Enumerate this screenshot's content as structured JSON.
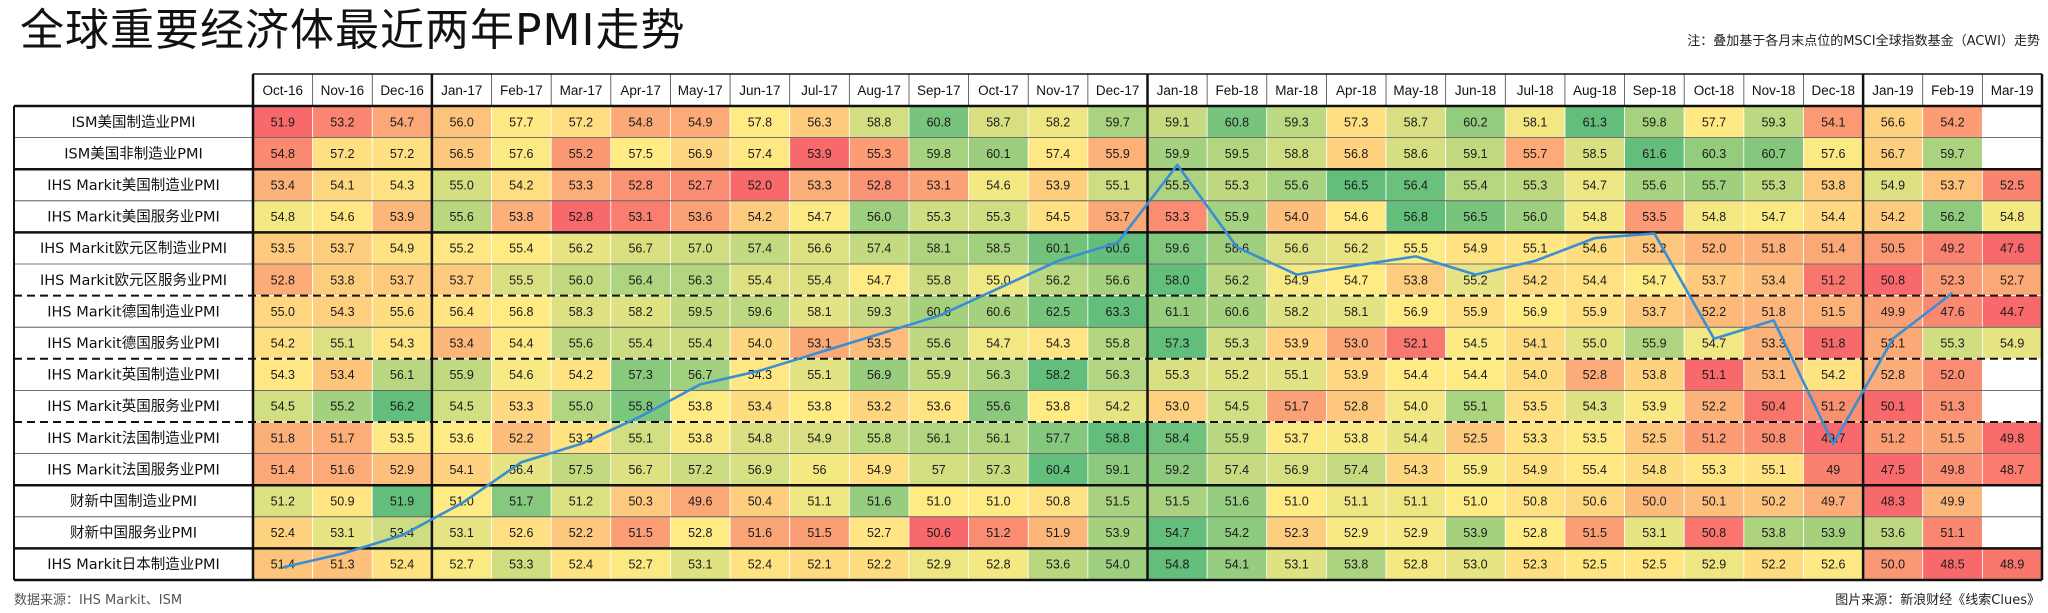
{
  "header": {
    "title": "全球重要经济体最近两年PMI走势",
    "note": "注：叠加基于各月末点位的MSCI全球指数基金（ACWI）走势"
  },
  "footer": {
    "source": "数据来源：IHS Markit、ISM",
    "image_source": "图片来源：新浪财经《线索Clues》"
  },
  "chart_data": {
    "type": "heatmap",
    "title": "全球重要经济体最近两年PMI走势",
    "columns": [
      "Oct-16",
      "Nov-16",
      "Dec-16",
      "Jan-17",
      "Feb-17",
      "Mar-17",
      "Apr-17",
      "May-17",
      "Jun-17",
      "Jul-17",
      "Aug-17",
      "Sep-17",
      "Oct-17",
      "Nov-17",
      "Dec-17",
      "Jan-18",
      "Feb-18",
      "Mar-18",
      "Apr-18",
      "May-18",
      "Jun-18",
      "Jul-18",
      "Aug-18",
      "Sep-18",
      "Oct-18",
      "Nov-18",
      "Dec-18",
      "Jan-19",
      "Feb-19",
      "Mar-19"
    ],
    "rows": [
      {
        "label": "ISM美国制造业PMI",
        "values": [
          "51.9",
          "53.2",
          "54.7",
          "56.0",
          "57.7",
          "57.2",
          "54.8",
          "54.9",
          "57.8",
          "56.3",
          "58.8",
          "60.8",
          "58.7",
          "58.2",
          "59.7",
          "59.1",
          "60.8",
          "59.3",
          "57.3",
          "58.7",
          "60.2",
          "58.1",
          "61.3",
          "59.8",
          "57.7",
          "59.3",
          "54.1",
          "56.6",
          "54.2",
          ""
        ]
      },
      {
        "label": "ISM美国非制造业PMI",
        "values": [
          "54.8",
          "57.2",
          "57.2",
          "56.5",
          "57.6",
          "55.2",
          "57.5",
          "56.9",
          "57.4",
          "53.9",
          "55.3",
          "59.8",
          "60.1",
          "57.4",
          "55.9",
          "59.9",
          "59.5",
          "58.8",
          "56.8",
          "58.6",
          "59.1",
          "55.7",
          "58.5",
          "61.6",
          "60.3",
          "60.7",
          "57.6",
          "56.7",
          "59.7",
          ""
        ]
      },
      {
        "label": "IHS Markit美国制造业PMI",
        "values": [
          "53.4",
          "54.1",
          "54.3",
          "55.0",
          "54.2",
          "53.3",
          "52.8",
          "52.7",
          "52.0",
          "53.3",
          "52.8",
          "53.1",
          "54.6",
          "53.9",
          "55.1",
          "55.5",
          "55.3",
          "55.6",
          "56.5",
          "56.4",
          "55.4",
          "55.3",
          "54.7",
          "55.6",
          "55.7",
          "55.3",
          "53.8",
          "54.9",
          "53.7",
          "52.5"
        ]
      },
      {
        "label": "IHS Markit美国服务业PMI",
        "values": [
          "54.8",
          "54.6",
          "53.9",
          "55.6",
          "53.8",
          "52.8",
          "53.1",
          "53.6",
          "54.2",
          "54.7",
          "56.0",
          "55.3",
          "55.3",
          "54.5",
          "53.7",
          "53.3",
          "55.9",
          "54.0",
          "54.6",
          "56.8",
          "56.5",
          "56.0",
          "54.8",
          "53.5",
          "54.8",
          "54.7",
          "54.4",
          "54.2",
          "56.2",
          "54.8"
        ]
      },
      {
        "label": "IHS Markit欧元区制造业PMI",
        "values": [
          "53.5",
          "53.7",
          "54.9",
          "55.2",
          "55.4",
          "56.2",
          "56.7",
          "57.0",
          "57.4",
          "56.6",
          "57.4",
          "58.1",
          "58.5",
          "60.1",
          "60.6",
          "59.6",
          "58.6",
          "56.6",
          "56.2",
          "55.5",
          "54.9",
          "55.1",
          "54.6",
          "53.2",
          "52.0",
          "51.8",
          "51.4",
          "50.5",
          "49.2",
          "47.6"
        ]
      },
      {
        "label": "IHS Markit欧元区服务业PMI",
        "values": [
          "52.8",
          "53.8",
          "53.7",
          "53.7",
          "55.5",
          "56.0",
          "56.4",
          "56.3",
          "55.4",
          "55.4",
          "54.7",
          "55.8",
          "55.0",
          "56.2",
          "56.6",
          "58.0",
          "56.2",
          "54.9",
          "54.7",
          "53.8",
          "55.2",
          "54.2",
          "54.4",
          "54.7",
          "53.7",
          "53.4",
          "51.2",
          "50.8",
          "52.3",
          "52.7"
        ]
      },
      {
        "label": "IHS Markit德国制造业PMI",
        "values": [
          "55.0",
          "54.3",
          "55.6",
          "56.4",
          "56.8",
          "58.3",
          "58.2",
          "59.5",
          "59.6",
          "58.1",
          "59.3",
          "60.6",
          "60.6",
          "62.5",
          "63.3",
          "61.1",
          "60.6",
          "58.2",
          "58.1",
          "56.9",
          "55.9",
          "56.9",
          "55.9",
          "53.7",
          "52.2",
          "51.8",
          "51.5",
          "49.9",
          "47.6",
          "44.7"
        ]
      },
      {
        "label": "IHS Markit德国服务业PMI",
        "values": [
          "54.2",
          "55.1",
          "54.3",
          "53.4",
          "54.4",
          "55.6",
          "55.4",
          "55.4",
          "54.0",
          "53.1",
          "53.5",
          "55.6",
          "54.7",
          "54.3",
          "55.8",
          "57.3",
          "55.3",
          "53.9",
          "53.0",
          "52.1",
          "54.5",
          "54.1",
          "55.0",
          "55.9",
          "54.7",
          "53.3",
          "51.8",
          "53.1",
          "55.3",
          "54.9"
        ]
      },
      {
        "label": "IHS Markit英国制造业PMI",
        "values": [
          "54.3",
          "53.4",
          "56.1",
          "55.9",
          "54.6",
          "54.2",
          "57.3",
          "56.7",
          "54.3",
          "55.1",
          "56.9",
          "55.9",
          "56.3",
          "58.2",
          "56.3",
          "55.3",
          "55.2",
          "55.1",
          "53.9",
          "54.4",
          "54.4",
          "54.0",
          "52.8",
          "53.8",
          "51.1",
          "53.1",
          "54.2",
          "52.8",
          "52.0",
          ""
        ]
      },
      {
        "label": "IHS Markit英国服务业PMI",
        "values": [
          "54.5",
          "55.2",
          "56.2",
          "54.5",
          "53.3",
          "55.0",
          "55.8",
          "53.8",
          "53.4",
          "53.8",
          "53.2",
          "53.6",
          "55.6",
          "53.8",
          "54.2",
          "53.0",
          "54.5",
          "51.7",
          "52.8",
          "54.0",
          "55.1",
          "53.5",
          "54.3",
          "53.9",
          "52.2",
          "50.4",
          "51.2",
          "50.1",
          "51.3",
          ""
        ]
      },
      {
        "label": "IHS Markit法国制造业PMI",
        "values": [
          "51.8",
          "51.7",
          "53.5",
          "53.6",
          "52.2",
          "53.3",
          "55.1",
          "53.8",
          "54.8",
          "54.9",
          "55.8",
          "56.1",
          "56.1",
          "57.7",
          "58.8",
          "58.4",
          "55.9",
          "53.7",
          "53.8",
          "54.4",
          "52.5",
          "53.3",
          "53.5",
          "52.5",
          "51.2",
          "50.8",
          "49.7",
          "51.2",
          "51.5",
          "49.8"
        ]
      },
      {
        "label": "IHS Markit法国服务业PMI",
        "values": [
          "51.4",
          "51.6",
          "52.9",
          "54.1",
          "56.4",
          "57.5",
          "56.7",
          "57.2",
          "56.9",
          "56",
          "54.9",
          "57",
          "57.3",
          "60.4",
          "59.1",
          "59.2",
          "57.4",
          "56.9",
          "57.4",
          "54.3",
          "55.9",
          "54.9",
          "55.4",
          "54.8",
          "55.3",
          "55.1",
          "49",
          "47.5",
          "49.8",
          "48.7"
        ]
      },
      {
        "label": "财新中国制造业PMI",
        "values": [
          "51.2",
          "50.9",
          "51.9",
          "51.0",
          "51.7",
          "51.2",
          "50.3",
          "49.6",
          "50.4",
          "51.1",
          "51.6",
          "51.0",
          "51.0",
          "50.8",
          "51.5",
          "51.5",
          "51.6",
          "51.0",
          "51.1",
          "51.1",
          "51.0",
          "50.8",
          "50.6",
          "50.0",
          "50.1",
          "50.2",
          "49.7",
          "48.3",
          "49.9",
          ""
        ]
      },
      {
        "label": "财新中国服务业PMI",
        "values": [
          "52.4",
          "53.1",
          "53.4",
          "53.1",
          "52.6",
          "52.2",
          "51.5",
          "52.8",
          "51.6",
          "51.5",
          "52.7",
          "50.6",
          "51.2",
          "51.9",
          "53.9",
          "54.7",
          "54.2",
          "52.3",
          "52.9",
          "52.9",
          "53.9",
          "52.8",
          "51.5",
          "53.1",
          "50.8",
          "53.8",
          "53.9",
          "53.6",
          "51.1",
          ""
        ]
      },
      {
        "label": "IHS Markit日本制造业PMI",
        "values": [
          "51.4",
          "51.3",
          "52.4",
          "52.7",
          "53.3",
          "52.4",
          "52.7",
          "53.1",
          "52.4",
          "52.1",
          "52.2",
          "52.9",
          "52.8",
          "53.6",
          "54.0",
          "54.8",
          "54.1",
          "53.1",
          "53.8",
          "52.8",
          "53.0",
          "52.3",
          "52.5",
          "52.5",
          "52.9",
          "52.2",
          "52.6",
          "50.0",
          "48.5",
          "48.9"
        ]
      }
    ],
    "overlay": {
      "name": "MSCI全球指数基金（ACWI）",
      "values": [
        0.0,
        0.03,
        0.07,
        0.14,
        0.23,
        0.27,
        0.33,
        0.4,
        0.43,
        0.47,
        0.51,
        0.55,
        0.61,
        0.67,
        0.71,
        0.88,
        0.7,
        0.64,
        0.66,
        0.68,
        0.64,
        0.67,
        0.72,
        0.73,
        0.5,
        0.54,
        0.27,
        0.5,
        0.6
      ],
      "ylim": [
        0,
        1
      ],
      "color": "#3a8fd4"
    },
    "colors": {
      "low": "#f8696b",
      "mid": "#ffeb84",
      "high": "#63be7b"
    },
    "thick_row_breaks": [
      0,
      2,
      4,
      12,
      14,
      15
    ],
    "dashed_row_breaks": [
      6,
      8,
      10
    ],
    "thick_col_breaks": [
      0,
      3,
      15,
      27,
      30
    ]
  }
}
